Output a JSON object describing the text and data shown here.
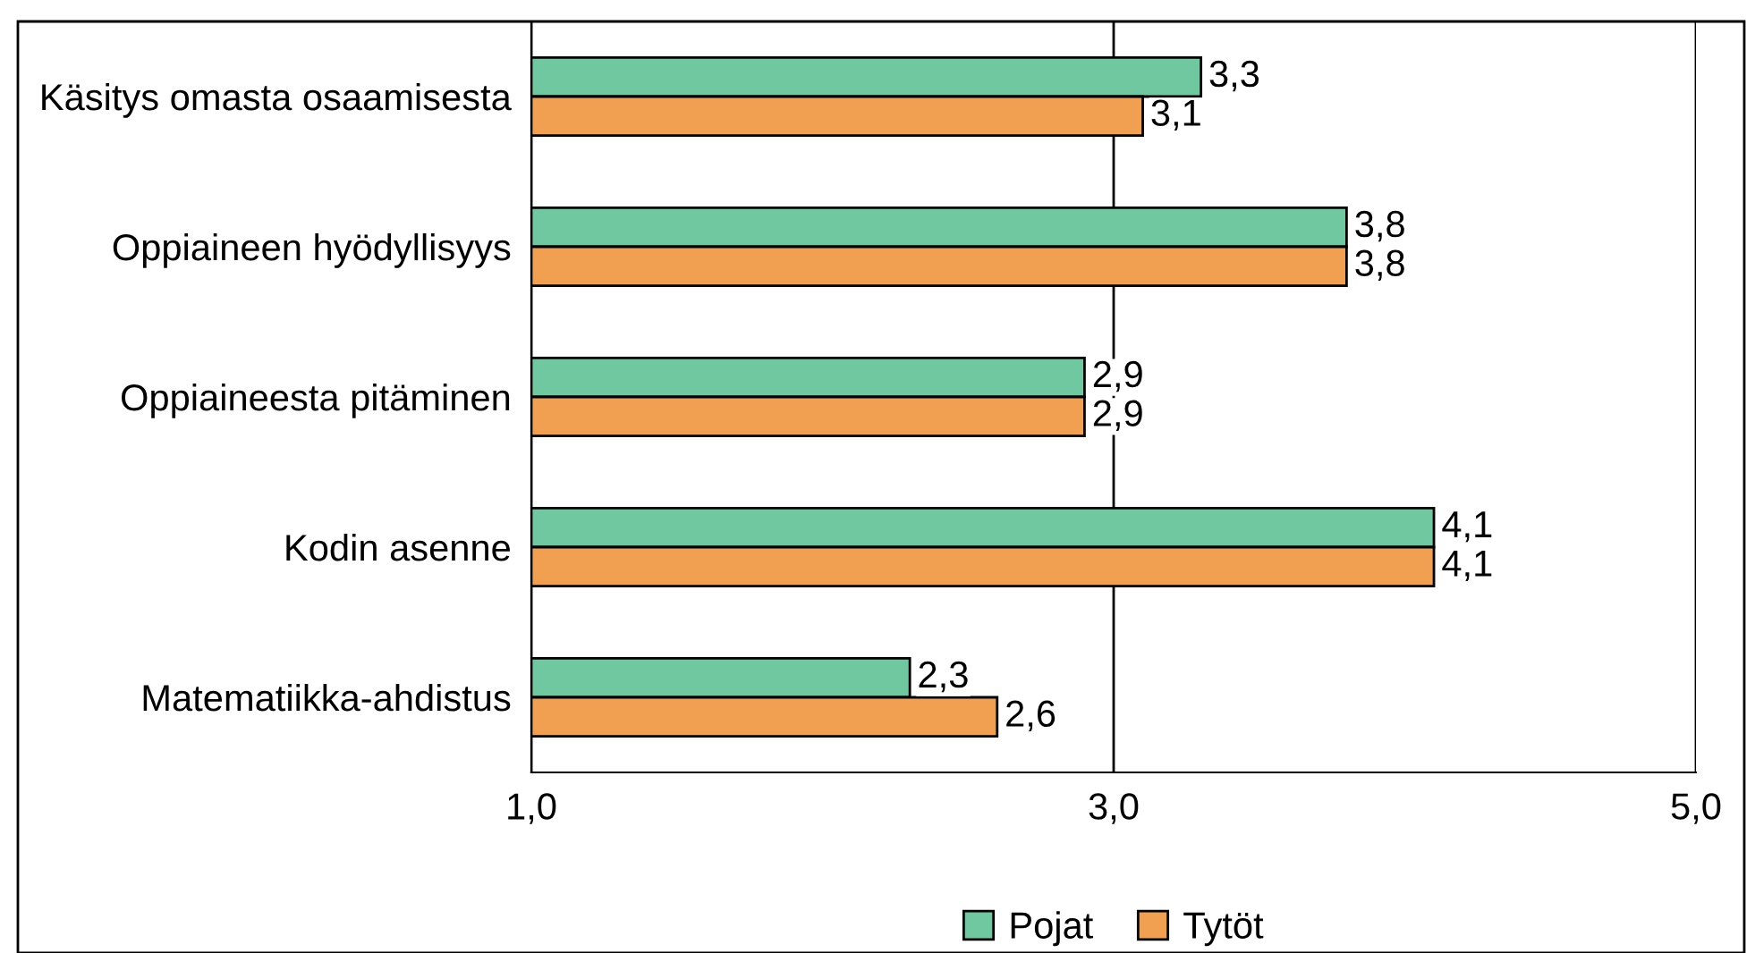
{
  "chart_data": {
    "type": "bar",
    "orientation": "horizontal",
    "categories": [
      "Käsitys omasta osaamisesta",
      "Oppiaineen hyödyllisyys",
      "Oppiaineesta pitäminen",
      "Kodin asenne",
      "Matematiikka-ahdistus"
    ],
    "series": [
      {
        "name": "Pojat",
        "color": "#70c8a0",
        "values": [
          3.3,
          3.8,
          2.9,
          4.1,
          2.3
        ],
        "value_labels": [
          "3,3",
          "3,8",
          "2,9",
          "4,1",
          "2,3"
        ]
      },
      {
        "name": "Tytöt",
        "color": "#f0a050",
        "values": [
          3.1,
          3.8,
          2.9,
          4.1,
          2.6
        ],
        "value_labels": [
          "3,1",
          "3,8",
          "2,9",
          "4,1",
          "2,6"
        ]
      }
    ],
    "xlim": [
      1,
      5
    ],
    "xticks": [
      {
        "value": 1,
        "label": "1,0"
      },
      {
        "value": 3,
        "label": "3,0"
      },
      {
        "value": 5,
        "label": "5,0"
      }
    ],
    "grid": "x",
    "legend": "bottom"
  }
}
